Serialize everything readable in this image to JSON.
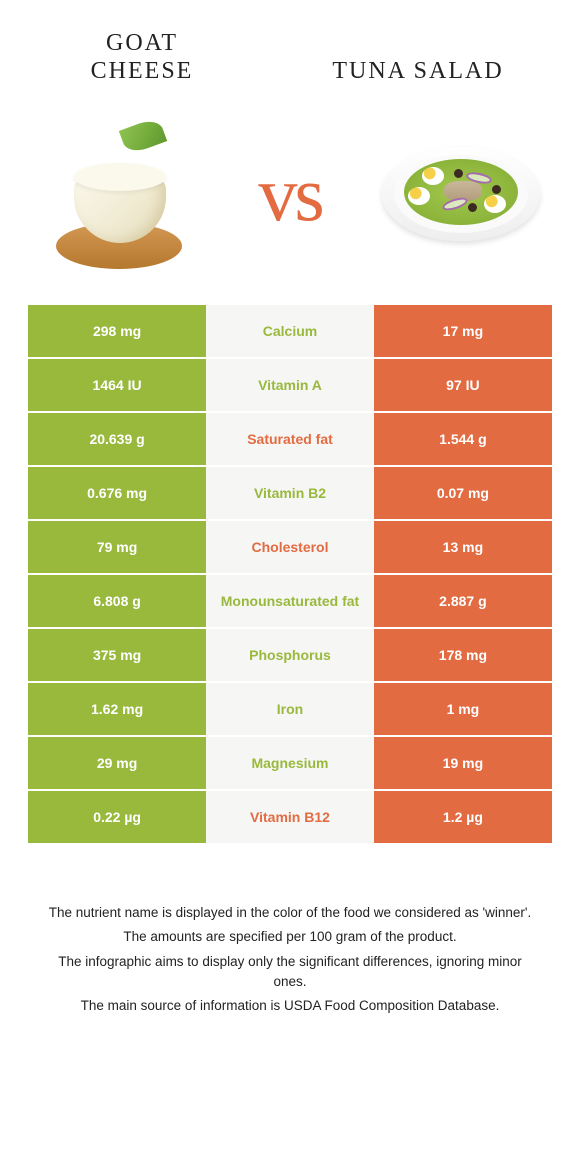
{
  "titles": {
    "left": "GOAT CHEESE",
    "right": "TUNA SALAD"
  },
  "vs": "vs",
  "colors": {
    "left": "#99b93d",
    "right": "#e36b42",
    "mid_bg": "#f6f6f4"
  },
  "nutrients": [
    {
      "name": "Calcium",
      "left": "298 mg",
      "right": "17 mg",
      "winner": "left"
    },
    {
      "name": "Vitamin A",
      "left": "1464 IU",
      "right": "97 IU",
      "winner": "left"
    },
    {
      "name": "Saturated fat",
      "left": "20.639 g",
      "right": "1.544 g",
      "winner": "right"
    },
    {
      "name": "Vitamin B2",
      "left": "0.676 mg",
      "right": "0.07 mg",
      "winner": "left"
    },
    {
      "name": "Cholesterol",
      "left": "79 mg",
      "right": "13 mg",
      "winner": "right"
    },
    {
      "name": "Monounsaturated fat",
      "left": "6.808 g",
      "right": "2.887 g",
      "winner": "left"
    },
    {
      "name": "Phosphorus",
      "left": "375 mg",
      "right": "178 mg",
      "winner": "left"
    },
    {
      "name": "Iron",
      "left": "1.62 mg",
      "right": "1 mg",
      "winner": "left"
    },
    {
      "name": "Magnesium",
      "left": "29 mg",
      "right": "19 mg",
      "winner": "left"
    },
    {
      "name": "Vitamin B12",
      "left": "0.22 µg",
      "right": "1.2 µg",
      "winner": "right"
    }
  ],
  "footer": [
    "The nutrient name is displayed in the color of the food we considered as 'winner'.",
    "The amounts are specified per 100 gram of the product.",
    "The infographic aims to display only the significant differences, ignoring minor ones.",
    "The main source of information is USDA Food Composition Database."
  ]
}
